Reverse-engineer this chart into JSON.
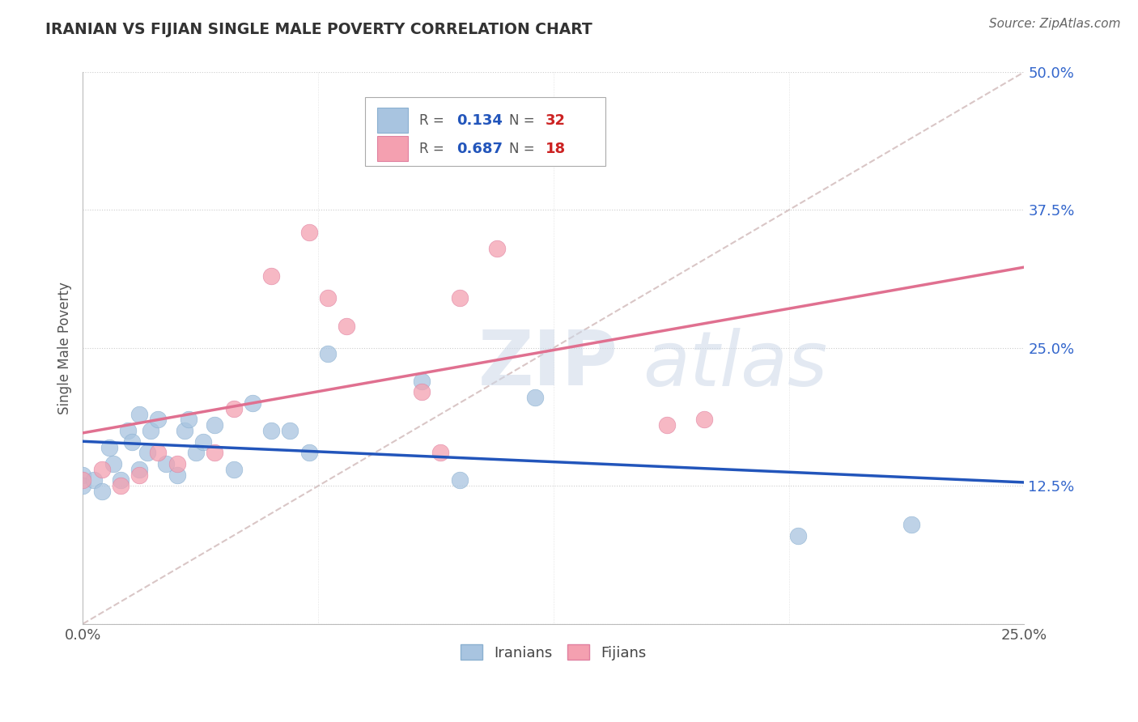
{
  "title": "IRANIAN VS FIJIAN SINGLE MALE POVERTY CORRELATION CHART",
  "source": "Source: ZipAtlas.com",
  "ylabel_label": "Single Male Poverty",
  "xlim": [
    0.0,
    0.25
  ],
  "ylim": [
    0.0,
    0.5
  ],
  "xtick_vals": [
    0.0,
    0.0625,
    0.125,
    0.1875,
    0.25
  ],
  "xtick_labels": [
    "0.0%",
    "",
    "",
    "",
    "25.0%"
  ],
  "ytick_vals": [
    0.0,
    0.125,
    0.25,
    0.375,
    0.5
  ],
  "ytick_labels": [
    "",
    "12.5%",
    "25.0%",
    "37.5%",
    "50.0%"
  ],
  "grid_color": "#cccccc",
  "background_color": "#ffffff",
  "iranian_color": "#a8c4e0",
  "fijian_color": "#f4a0b0",
  "trend_iranian_color": "#2255bb",
  "trend_fijian_color": "#e07090",
  "diagonal_color": "#d0b8b8",
  "r_iranian": 0.134,
  "n_iranian": 32,
  "r_fijian": 0.687,
  "n_fijian": 18,
  "iranians_x": [
    0.0,
    0.0,
    0.003,
    0.005,
    0.007,
    0.008,
    0.01,
    0.012,
    0.013,
    0.015,
    0.015,
    0.017,
    0.018,
    0.02,
    0.022,
    0.025,
    0.027,
    0.028,
    0.03,
    0.032,
    0.035,
    0.04,
    0.045,
    0.05,
    0.055,
    0.06,
    0.065,
    0.09,
    0.1,
    0.12,
    0.19,
    0.22
  ],
  "iranians_y": [
    0.135,
    0.125,
    0.13,
    0.12,
    0.16,
    0.145,
    0.13,
    0.175,
    0.165,
    0.14,
    0.19,
    0.155,
    0.175,
    0.185,
    0.145,
    0.135,
    0.175,
    0.185,
    0.155,
    0.165,
    0.18,
    0.14,
    0.2,
    0.175,
    0.175,
    0.155,
    0.245,
    0.22,
    0.13,
    0.205,
    0.08,
    0.09
  ],
  "fijians_x": [
    0.0,
    0.005,
    0.01,
    0.015,
    0.02,
    0.025,
    0.035,
    0.04,
    0.05,
    0.06,
    0.065,
    0.07,
    0.09,
    0.095,
    0.1,
    0.11,
    0.155,
    0.165
  ],
  "fijians_y": [
    0.13,
    0.14,
    0.125,
    0.135,
    0.155,
    0.145,
    0.155,
    0.195,
    0.315,
    0.355,
    0.295,
    0.27,
    0.21,
    0.155,
    0.295,
    0.34,
    0.18,
    0.185
  ],
  "watermark_zip": "ZIP",
  "watermark_atlas": "atlas",
  "legend_r_color": "#2255bb",
  "legend_n_color": "#cc2222"
}
